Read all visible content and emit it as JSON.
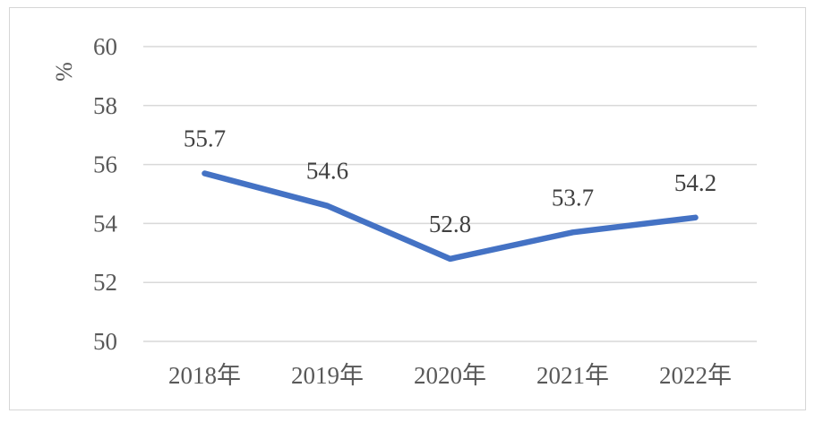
{
  "chart_data": {
    "type": "line",
    "title": "",
    "xlabel": "",
    "ylabel": "%",
    "ylim": [
      50,
      60
    ],
    "yticks": [
      50,
      52,
      54,
      56,
      58,
      60
    ],
    "categories": [
      "2018年",
      "2019年",
      "2020年",
      "2021年",
      "2022年"
    ],
    "series": [
      {
        "values": [
          55.7,
          54.6,
          52.8,
          53.7,
          54.2
        ],
        "data_labels": [
          "55.7",
          "54.6",
          "52.8",
          "53.7",
          "54.2"
        ]
      }
    ],
    "grid": true,
    "legend": "none",
    "line_color": "#4472C4",
    "grid_color": "#d9d9d9"
  }
}
